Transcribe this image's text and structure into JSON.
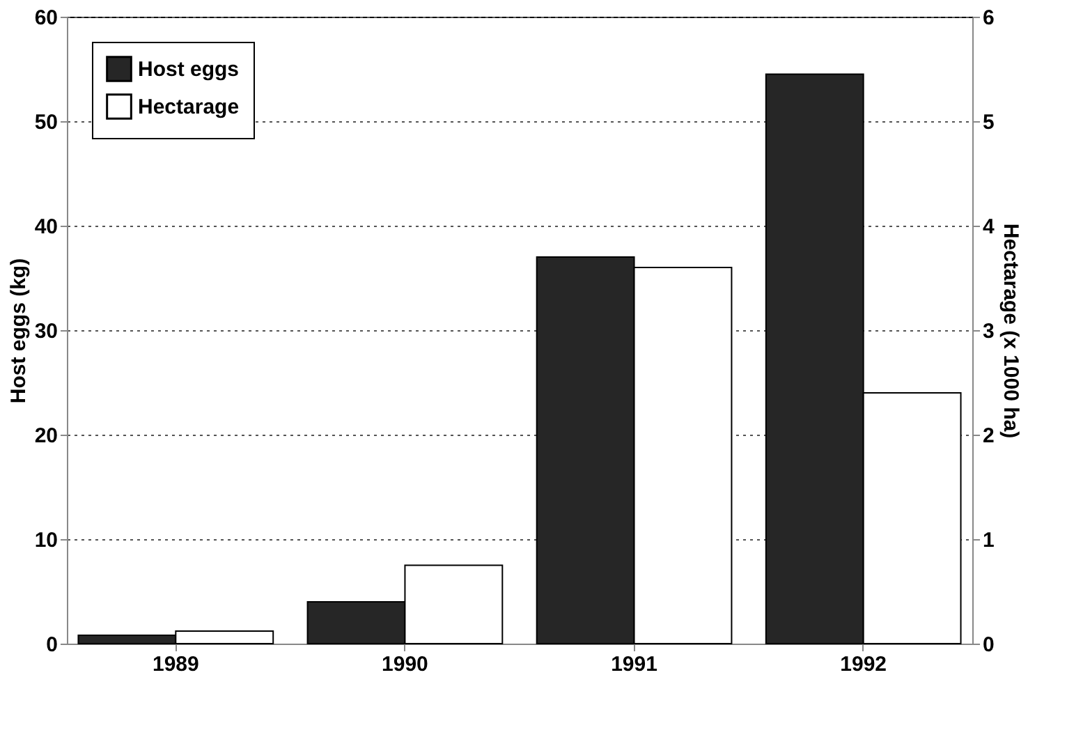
{
  "chart_data": {
    "type": "bar",
    "categories": [
      "1989",
      "1990",
      "1991",
      "1992"
    ],
    "ylabel": "Host eggs (kg)",
    "y2label": "Hectarage (x 1000 ha)",
    "ylim": [
      0,
      60
    ],
    "yticks": [
      0,
      10,
      20,
      30,
      40,
      50,
      60
    ],
    "y2lim": [
      0,
      6
    ],
    "y2ticks": [
      0,
      1,
      2,
      3,
      4,
      5,
      6
    ],
    "series": [
      {
        "name": "Host eggs",
        "color": "#262626",
        "values": [
          0.8,
          4,
          37,
          54.5
        ]
      },
      {
        "name": "Hectarage",
        "color": "#ffffff",
        "axis": "y2",
        "values": [
          0.12,
          0.75,
          3.6,
          2.4
        ]
      }
    ],
    "grid": "y",
    "legend": "top left",
    "line_style": "dotted"
  }
}
